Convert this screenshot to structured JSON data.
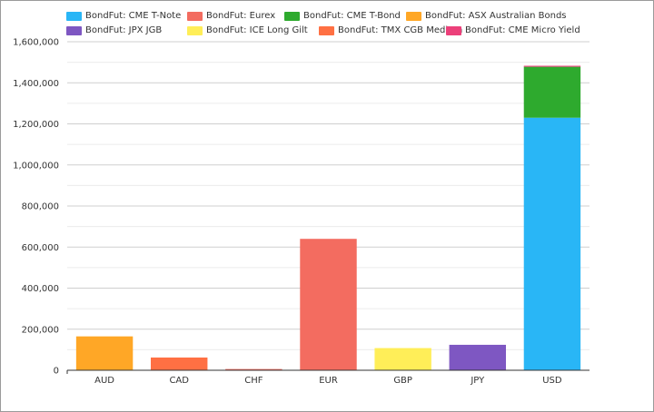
{
  "chart_data": {
    "type": "bar",
    "stacked": true,
    "categories": [
      "AUD",
      "CAD",
      "CHF",
      "EUR",
      "GBP",
      "JPY",
      "USD"
    ],
    "series": [
      {
        "name": "BondFut: CME T-Note",
        "color": "#29b6f6",
        "values": [
          0,
          0,
          0,
          0,
          0,
          0,
          1230000
        ]
      },
      {
        "name": "BondFut: Eurex",
        "color": "#f36c60",
        "values": [
          0,
          0,
          6000,
          640000,
          0,
          0,
          0
        ]
      },
      {
        "name": "BondFut: CME T-Bond",
        "color": "#2eaa2e",
        "values": [
          0,
          0,
          0,
          0,
          0,
          0,
          248000
        ]
      },
      {
        "name": "BondFut: ASX Australian Bonds",
        "color": "#ffa726",
        "values": [
          165000,
          0,
          0,
          0,
          0,
          0,
          0
        ]
      },
      {
        "name": "BondFut: JPX JGB",
        "color": "#7e57c2",
        "values": [
          0,
          0,
          0,
          0,
          0,
          124000,
          0
        ]
      },
      {
        "name": "BondFut: ICE Long Gilt",
        "color": "#ffee58",
        "values": [
          0,
          0,
          0,
          0,
          108000,
          0,
          0
        ]
      },
      {
        "name": "BondFut: TMX CGB Medium",
        "color": "#ff7043",
        "values": [
          0,
          62000,
          0,
          0,
          0,
          0,
          0
        ]
      },
      {
        "name": "BondFut: CME Micro Yield",
        "color": "#ec407a",
        "values": [
          0,
          0,
          0,
          0,
          0,
          0,
          5000
        ]
      }
    ],
    "ylim": [
      0,
      1600000
    ],
    "yticks": [
      0,
      200000,
      400000,
      600000,
      800000,
      1000000,
      1200000,
      1400000,
      1600000
    ],
    "ytick_labels": [
      "0",
      "200,000",
      "400,000",
      "600,000",
      "800,000",
      "1,000,000",
      "1,200,000",
      "1,400,000",
      "1,600,000"
    ],
    "grid": true,
    "legend_position": "top"
  }
}
